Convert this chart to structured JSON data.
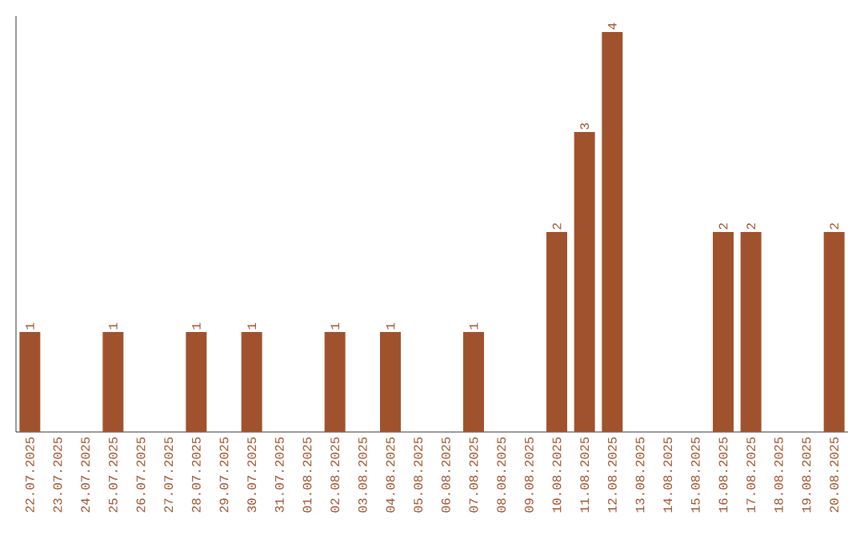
{
  "chart_data": {
    "type": "bar",
    "color": "#a0522d",
    "categories": [
      "22.07.2025",
      "23.07.2025",
      "24.07.2025",
      "25.07.2025",
      "26.07.2025",
      "27.07.2025",
      "28.07.2025",
      "29.07.2025",
      "30.07.2025",
      "31.07.2025",
      "01.08.2025",
      "02.08.2025",
      "03.08.2025",
      "04.08.2025",
      "05.08.2025",
      "06.08.2025",
      "07.08.2025",
      "08.08.2025",
      "09.08.2025",
      "10.08.2025",
      "11.08.2025",
      "12.08.2025",
      "13.08.2025",
      "14.08.2025",
      "15.08.2025",
      "16.08.2025",
      "17.08.2025",
      "18.08.2025",
      "19.08.2025",
      "20.08.2025"
    ],
    "values": [
      1,
      0,
      0,
      1,
      0,
      0,
      1,
      0,
      1,
      0,
      0,
      1,
      0,
      1,
      0,
      0,
      1,
      0,
      0,
      2,
      3,
      4,
      0,
      0,
      0,
      2,
      2,
      0,
      0,
      2
    ],
    "value_labels": [
      "1",
      null,
      null,
      "1",
      null,
      null,
      "1",
      null,
      "1",
      null,
      null,
      "1",
      null,
      "1",
      null,
      null,
      "1",
      null,
      null,
      "2",
      "3",
      "4",
      null,
      null,
      null,
      "2",
      "2",
      null,
      null,
      "2"
    ],
    "tick_labels": "x"
  }
}
